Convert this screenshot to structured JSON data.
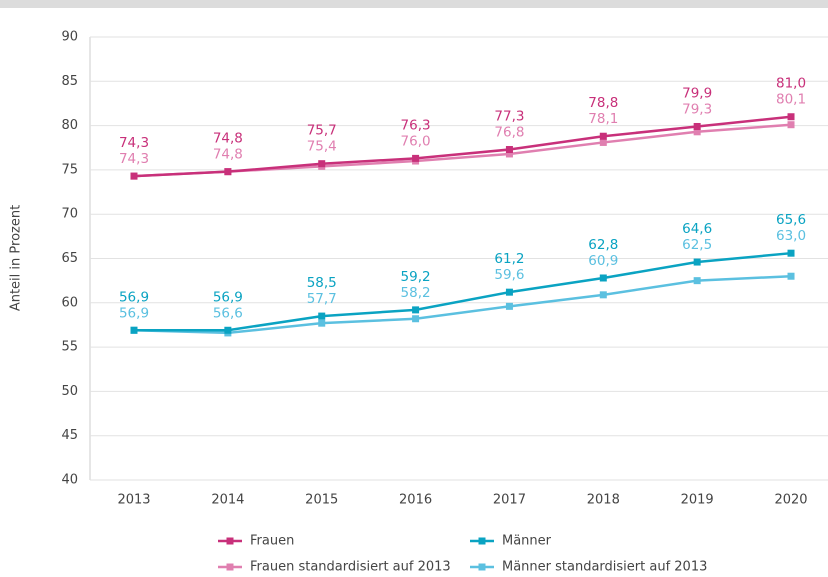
{
  "chart_data": {
    "type": "line",
    "y_axis_label": "Anteil in Prozent",
    "categories": [
      "2013",
      "2014",
      "2015",
      "2016",
      "2017",
      "2018",
      "2019",
      "2020"
    ],
    "series": [
      {
        "name": "Frauen",
        "color": "#c8307a",
        "values": [
          74.3,
          74.8,
          75.7,
          76.3,
          77.3,
          78.8,
          79.9,
          81.0
        ],
        "value_labels": [
          "74,3",
          "74,8",
          "75,7",
          "76,3",
          "77,3",
          "78,8",
          "79,9",
          "81,0"
        ]
      },
      {
        "name": "Männer",
        "color": "#0aa3c2",
        "values": [
          56.9,
          56.9,
          58.5,
          59.2,
          61.2,
          62.8,
          64.6,
          65.6
        ],
        "value_labels": [
          "56,9",
          "56,9",
          "58,5",
          "59,2",
          "61,2",
          "62,8",
          "64,6",
          "65,6"
        ]
      },
      {
        "name": "Frauen standardisiert auf 2013",
        "color": "#e07fb0",
        "values": [
          74.3,
          74.8,
          75.4,
          76.0,
          76.8,
          78.1,
          79.3,
          80.1
        ],
        "value_labels": [
          "74,3",
          "74,8",
          "75,4",
          "76,0",
          "76,8",
          "78,1",
          "79,3",
          "80,1"
        ]
      },
      {
        "name": "Männer standardisiert auf 2013",
        "color": "#5bc0e0",
        "values": [
          56.9,
          56.6,
          57.7,
          58.2,
          59.6,
          60.9,
          62.5,
          63.0
        ],
        "value_labels": [
          "56,9",
          "56,6",
          "57,7",
          "58,2",
          "59,6",
          "60,9",
          "62,5",
          "63,0"
        ]
      }
    ],
    "ylim": [
      40,
      90
    ],
    "yticks": [
      40,
      45,
      50,
      55,
      60,
      65,
      70,
      75,
      80,
      85,
      90
    ],
    "grid": true
  }
}
